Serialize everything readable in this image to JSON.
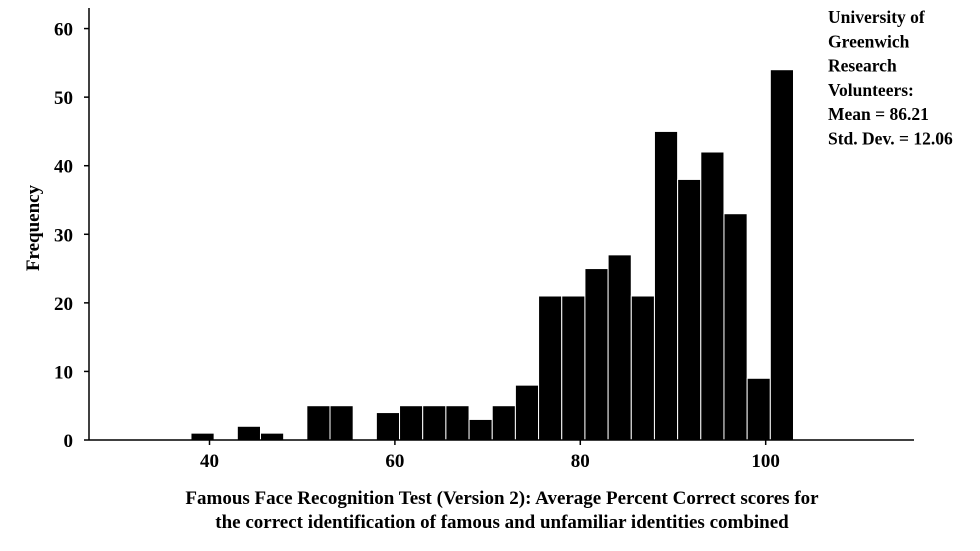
{
  "chart_data": {
    "type": "bar",
    "subtype": "histogram",
    "xlabel_lines": [
      "Famous Face Recognition Test (Version 2): Average Percent Correct scores for",
      "the correct identification of famous and unfamiliar identities combined"
    ],
    "ylabel": "Frequency",
    "xlim": [
      27,
      116
    ],
    "ylim": [
      0,
      63
    ],
    "xticks": [
      40,
      60,
      80,
      100
    ],
    "yticks": [
      0,
      10,
      20,
      30,
      40,
      50,
      60
    ],
    "bin_width": 2.5,
    "bins": [
      {
        "x0": 38.0,
        "x1": 40.5,
        "value": 1
      },
      {
        "x0": 43.0,
        "x1": 45.5,
        "value": 2
      },
      {
        "x0": 45.5,
        "x1": 48.0,
        "value": 1
      },
      {
        "x0": 50.5,
        "x1": 53.0,
        "value": 5
      },
      {
        "x0": 53.0,
        "x1": 55.5,
        "value": 5
      },
      {
        "x0": 58.0,
        "x1": 60.5,
        "value": 4
      },
      {
        "x0": 60.5,
        "x1": 63.0,
        "value": 5
      },
      {
        "x0": 63.0,
        "x1": 65.5,
        "value": 5
      },
      {
        "x0": 65.5,
        "x1": 68.0,
        "value": 5
      },
      {
        "x0": 68.0,
        "x1": 70.5,
        "value": 3
      },
      {
        "x0": 70.5,
        "x1": 73.0,
        "value": 5
      },
      {
        "x0": 73.0,
        "x1": 75.5,
        "value": 8
      },
      {
        "x0": 75.5,
        "x1": 78.0,
        "value": 21
      },
      {
        "x0": 78.0,
        "x1": 80.5,
        "value": 21
      },
      {
        "x0": 80.5,
        "x1": 83.0,
        "value": 25
      },
      {
        "x0": 83.0,
        "x1": 85.5,
        "value": 27
      },
      {
        "x0": 85.5,
        "x1": 88.0,
        "value": 21
      },
      {
        "x0": 88.0,
        "x1": 90.5,
        "value": 45
      },
      {
        "x0": 90.5,
        "x1": 93.0,
        "value": 38
      },
      {
        "x0": 93.0,
        "x1": 95.5,
        "value": 42
      },
      {
        "x0": 95.5,
        "x1": 98.0,
        "value": 33
      },
      {
        "x0": 98.0,
        "x1": 100.5,
        "value": 9
      },
      {
        "x0": 100.5,
        "x1": 103.0,
        "value": 54
      }
    ],
    "bar_color": "#000000",
    "bar_edge_color": "#ffffff",
    "grid": false,
    "annotation_lines": [
      "University of",
      "Greenwich",
      "Research",
      "Volunteers:",
      "Mean = 86.21",
      "Std. Dev. = 12.06"
    ],
    "stats": {
      "mean": 86.21,
      "std_dev": 12.06
    },
    "annotation_position": "top-right"
  }
}
